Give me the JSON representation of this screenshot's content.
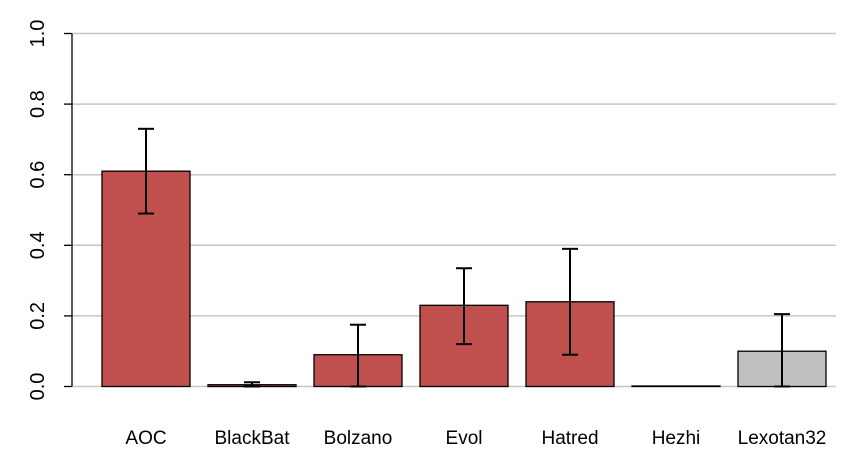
{
  "chart_data": {
    "type": "bar",
    "title": "",
    "xlabel": "",
    "ylabel": "",
    "ylim": [
      0,
      1
    ],
    "yticks": [
      "0.0",
      "0.2",
      "0.4",
      "0.6",
      "0.8",
      "1.0"
    ],
    "grid": "horizontal",
    "categories": [
      "AOC",
      "BlackBat",
      "Bolzano",
      "Evol",
      "Hatred",
      "Hezhi",
      "Lexotan32"
    ],
    "values": [
      0.61,
      0.005,
      0.09,
      0.23,
      0.24,
      0.0,
      0.1
    ],
    "error_low": [
      0.49,
      0.0,
      0.0,
      0.12,
      0.09,
      0.0,
      0.0
    ],
    "error_high": [
      0.73,
      0.012,
      0.175,
      0.335,
      0.39,
      0.0,
      0.205
    ],
    "bar_colors": [
      "#c0504d",
      "#c0504d",
      "#c0504d",
      "#c0504d",
      "#c0504d",
      "#c0504d",
      "#c0c0c0"
    ]
  }
}
